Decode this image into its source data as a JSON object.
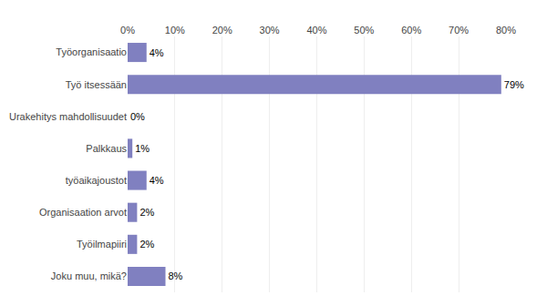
{
  "chart_data": {
    "type": "bar",
    "orientation": "horizontal",
    "categories": [
      "Työorganisaatio",
      "Työ itsessään",
      "Urakehitys mahdollisuudet",
      "Palkkaus",
      "työaikajoustot",
      "Organisaation arvot",
      "Työilmapiiri",
      "Joku muu, mikä?"
    ],
    "values": [
      4,
      79,
      0,
      1,
      4,
      2,
      2,
      8
    ],
    "value_labels": [
      "4%",
      "79%",
      "0%",
      "1%",
      "4%",
      "2%",
      "2%",
      "8%"
    ],
    "data_labels": true,
    "color": "#8080c0",
    "xlim": [
      0,
      80
    ],
    "xticks": [
      {
        "value": 0,
        "label": "0%"
      },
      {
        "value": 10,
        "label": "10%"
      },
      {
        "value": 20,
        "label": "20%"
      },
      {
        "value": 30,
        "label": "30%"
      },
      {
        "value": 40,
        "label": "40%"
      },
      {
        "value": 50,
        "label": "50%"
      },
      {
        "value": 60,
        "label": "60%"
      },
      {
        "value": 70,
        "label": "70%"
      },
      {
        "value": 80,
        "label": "80%"
      }
    ],
    "grid": true
  }
}
